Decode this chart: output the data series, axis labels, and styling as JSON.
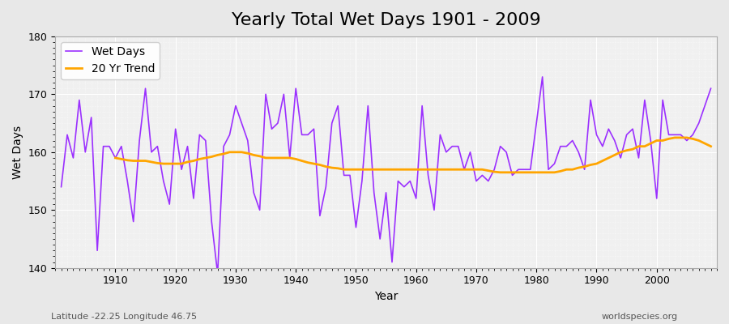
{
  "title": "Yearly Total Wet Days 1901 - 2009",
  "xlabel": "Year",
  "ylabel": "Wet Days",
  "years": [
    1901,
    1902,
    1903,
    1904,
    1905,
    1906,
    1907,
    1908,
    1909,
    1910,
    1911,
    1912,
    1913,
    1914,
    1915,
    1916,
    1917,
    1918,
    1919,
    1920,
    1921,
    1922,
    1923,
    1924,
    1925,
    1926,
    1927,
    1928,
    1929,
    1930,
    1931,
    1932,
    1933,
    1934,
    1935,
    1936,
    1937,
    1938,
    1939,
    1940,
    1941,
    1942,
    1943,
    1944,
    1945,
    1946,
    1947,
    1948,
    1949,
    1950,
    1951,
    1952,
    1953,
    1954,
    1955,
    1956,
    1957,
    1958,
    1959,
    1960,
    1961,
    1962,
    1963,
    1964,
    1965,
    1966,
    1967,
    1968,
    1969,
    1970,
    1971,
    1972,
    1973,
    1974,
    1975,
    1976,
    1977,
    1978,
    1979,
    1980,
    1981,
    1982,
    1983,
    1984,
    1985,
    1986,
    1987,
    1988,
    1989,
    1990,
    1991,
    1992,
    1993,
    1994,
    1995,
    1996,
    1997,
    1998,
    1999,
    2000,
    2001,
    2002,
    2003,
    2004,
    2005,
    2006,
    2007,
    2008,
    2009
  ],
  "wet_days": [
    154,
    163,
    159,
    169,
    160,
    166,
    143,
    161,
    161,
    159,
    161,
    155,
    148,
    162,
    171,
    160,
    161,
    155,
    151,
    164,
    157,
    161,
    152,
    163,
    162,
    148,
    139,
    161,
    163,
    168,
    165,
    162,
    153,
    150,
    170,
    164,
    165,
    170,
    159,
    171,
    163,
    163,
    164,
    149,
    154,
    165,
    168,
    156,
    156,
    147,
    155,
    168,
    153,
    145,
    153,
    141,
    155,
    154,
    155,
    152,
    168,
    156,
    150,
    163,
    160,
    161,
    161,
    157,
    160,
    155,
    156,
    155,
    157,
    161,
    160,
    156,
    157,
    157,
    157,
    165,
    173,
    157,
    158,
    161,
    161,
    162,
    160,
    157,
    169,
    163,
    161,
    164,
    162,
    159,
    163,
    164,
    159,
    169,
    162,
    152,
    169,
    163,
    163,
    163,
    162,
    163,
    165,
    168,
    171
  ],
  "trend_years": [
    1910,
    1911,
    1912,
    1913,
    1914,
    1915,
    1916,
    1917,
    1918,
    1919,
    1920,
    1921,
    1922,
    1923,
    1924,
    1925,
    1926,
    1927,
    1928,
    1929,
    1930,
    1931,
    1932,
    1933,
    1934,
    1935,
    1936,
    1937,
    1938,
    1939,
    1940,
    1941,
    1942,
    1943,
    1944,
    1945,
    1946,
    1947,
    1948,
    1949,
    1950,
    1951,
    1952,
    1953,
    1954,
    1955,
    1956,
    1957,
    1958,
    1959,
    1960,
    1961,
    1962,
    1963,
    1964,
    1965,
    1966,
    1967,
    1968,
    1969,
    1970,
    1971,
    1972,
    1973,
    1974,
    1975,
    1976,
    1977,
    1978,
    1979,
    1980,
    1981,
    1982,
    1983,
    1984,
    1985,
    1986,
    1987,
    1988,
    1989,
    1990,
    1991,
    1992,
    1993,
    1994,
    1995,
    1996,
    1997,
    1998,
    1999,
    2000,
    2001,
    2002,
    2003,
    2004,
    2005,
    2006,
    2007,
    2008,
    2009
  ],
  "trend_values": [
    159.0,
    158.8,
    158.6,
    158.5,
    158.5,
    158.5,
    158.3,
    158.1,
    158.0,
    158.0,
    158.0,
    158.0,
    158.3,
    158.5,
    158.8,
    159.0,
    159.2,
    159.5,
    159.7,
    160.0,
    160.0,
    160.0,
    159.8,
    159.5,
    159.3,
    159.0,
    159.0,
    159.0,
    159.0,
    159.0,
    158.8,
    158.5,
    158.2,
    158.0,
    157.8,
    157.5,
    157.3,
    157.2,
    157.0,
    157.0,
    157.0,
    157.0,
    157.0,
    157.0,
    157.0,
    157.0,
    157.0,
    157.0,
    157.0,
    157.0,
    157.0,
    157.0,
    157.0,
    157.0,
    157.0,
    157.0,
    157.0,
    157.0,
    157.0,
    157.0,
    157.0,
    157.0,
    156.8,
    156.6,
    156.5,
    156.5,
    156.5,
    156.5,
    156.5,
    156.5,
    156.5,
    156.5,
    156.5,
    156.5,
    156.7,
    157.0,
    157.0,
    157.3,
    157.5,
    157.8,
    158.0,
    158.5,
    159.0,
    159.5,
    160.0,
    160.3,
    160.5,
    161.0,
    161.0,
    161.5,
    162.0,
    162.0,
    162.3,
    162.5,
    162.5,
    162.5,
    162.3,
    162.0,
    161.5,
    161.0
  ],
  "wet_days_color": "#9B30FF",
  "trend_color": "#FFA500",
  "bg_color": "#E8E8E8",
  "plot_bg_color": "#F0F0F0",
  "ylim": [
    140,
    180
  ],
  "yticks": [
    140,
    150,
    160,
    170,
    180
  ],
  "xlim": [
    1900,
    2010
  ],
  "xticks": [
    1910,
    1920,
    1930,
    1940,
    1950,
    1960,
    1970,
    1980,
    1990,
    2000
  ],
  "subtitle_left": "Latitude -22.25 Longitude 46.75",
  "subtitle_right": "worldspecies.org",
  "title_fontsize": 16,
  "label_fontsize": 10,
  "tick_fontsize": 9
}
